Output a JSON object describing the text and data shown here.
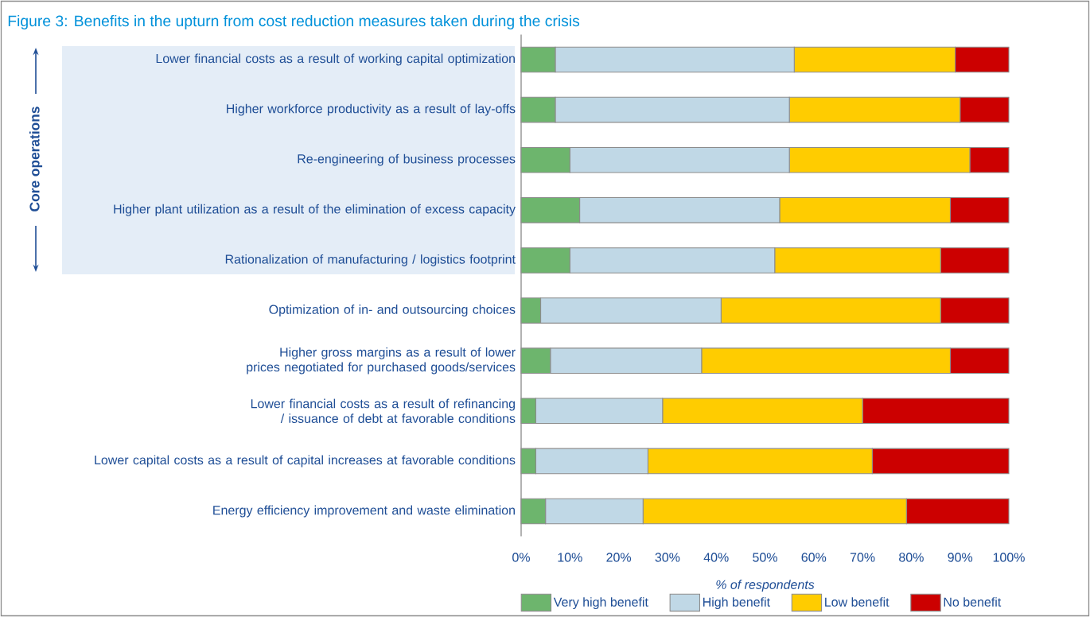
{
  "chart_data": {
    "type": "bar",
    "orientation": "horizontal",
    "stacked": true,
    "title": "Figure 3: Benefits in the upturn from cost reduction measures taken during the crisis",
    "xlabel": "% of respondents",
    "categories": [
      "Lower financial costs as a result of working capital optimization",
      "Higher workforce productivity as a result of lay-offs",
      "Re-engineering of business processes",
      "Higher plant utilization as a result of the elimination of excess capacity",
      "Rationalization of manufacturing / logistics footprint",
      "Optimization of in- and outsourcing choices",
      "Higher gross margins as a result of lower prices negotiated for purchased goods/services",
      "Lower financial costs as a result of refinancing / issuance of debt at favorable conditions",
      "Lower capital costs as a result of capital increases at favorable conditions",
      "Energy efficiency improvement and waste elimination"
    ],
    "series": [
      {
        "name": "Very high benefit",
        "color": "#6db56d",
        "values": [
          7,
          7,
          10,
          12,
          10,
          4,
          6,
          3,
          3,
          5
        ]
      },
      {
        "name": "High benefit",
        "color": "#c0d8e6",
        "values": [
          49,
          48,
          45,
          41,
          42,
          37,
          31,
          26,
          23,
          20
        ]
      },
      {
        "name": "Low benefit",
        "color": "#ffcc00",
        "values": [
          33,
          35,
          37,
          35,
          34,
          45,
          51,
          41,
          46,
          54
        ]
      },
      {
        "name": "No benefit",
        "color": "#cc0000",
        "values": [
          11,
          10,
          8,
          12,
          14,
          14,
          12,
          30,
          28,
          21
        ]
      }
    ],
    "xlim": [
      0,
      100
    ],
    "xticks": [
      {
        "value": 0,
        "label": "0%"
      },
      {
        "value": 10,
        "label": "10%"
      },
      {
        "value": 20,
        "label": "20%"
      },
      {
        "value": 30,
        "label": "30%"
      },
      {
        "value": 40,
        "label": "40%"
      },
      {
        "value": 50,
        "label": "50%"
      },
      {
        "value": 60,
        "label": "60%"
      },
      {
        "value": 70,
        "label": "70%"
      },
      {
        "value": 80,
        "label": "80%"
      },
      {
        "value": 90,
        "label": "90%"
      },
      {
        "value": 100,
        "label": "100%"
      }
    ],
    "legend": "bottom",
    "annotations": [
      "Core operations"
    ]
  }
}
